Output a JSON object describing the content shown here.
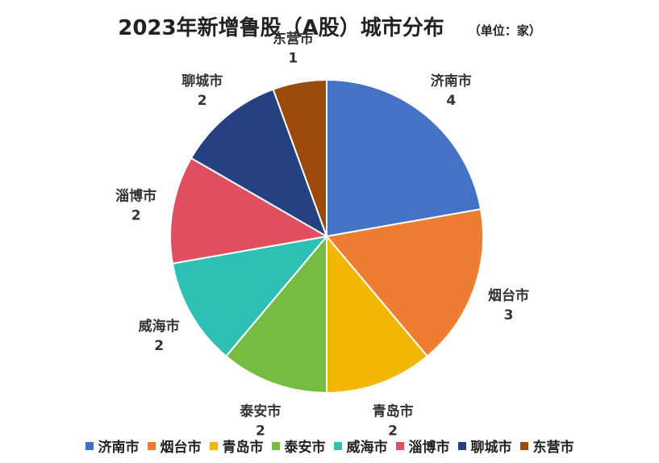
{
  "chart_data": {
    "type": "pie",
    "title": "2023年新增鲁股（A股）城市分布",
    "subtitle": "（单位：家）",
    "categories": [
      "济南市",
      "烟台市",
      "青岛市",
      "泰安市",
      "威海市",
      "淄博市",
      "聊城市",
      "东营市"
    ],
    "values": [
      4,
      3,
      2,
      2,
      2,
      2,
      2,
      1
    ],
    "colors": [
      "#4472C4",
      "#ED7D31",
      "#F2B705",
      "#76BC43",
      "#2EC0B4",
      "#E04E62",
      "#264182",
      "#9C4A0B"
    ],
    "legend_position": "bottom"
  }
}
